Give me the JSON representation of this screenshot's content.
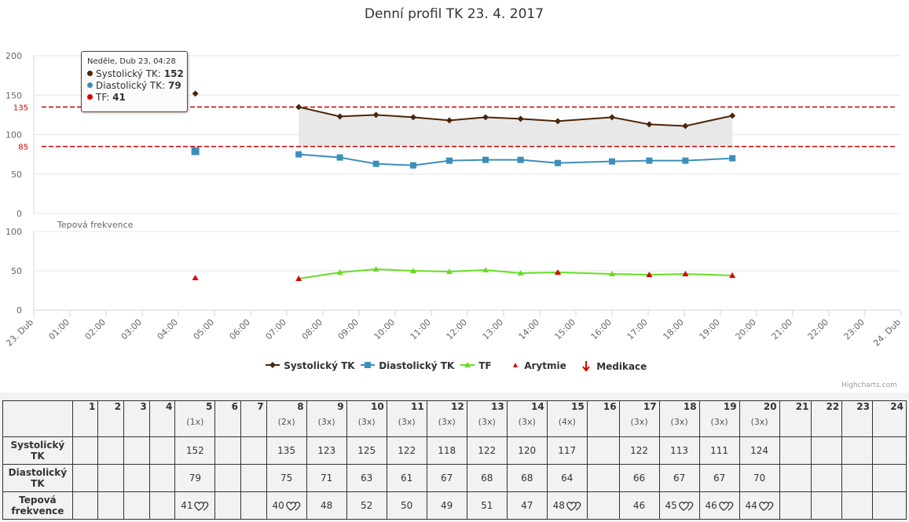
{
  "chart_data": {
    "type": "line",
    "title": "Denní profil TK 23. 4. 2017",
    "x_tick_labels": [
      "23. Dub",
      "01:00",
      "02:00",
      "03:00",
      "04:00",
      "05:00",
      "06:00",
      "07:00",
      "08:00",
      "09:00",
      "10:00",
      "11:00",
      "12:00",
      "13:00",
      "14:00",
      "15:00",
      "16:00",
      "17:00",
      "18:00",
      "19:00",
      "20:00",
      "21:00",
      "22:00",
      "23:00",
      "24. Dub"
    ],
    "pane_bp": {
      "ylim": [
        0,
        200
      ],
      "yticks": [
        "0",
        "50",
        "100",
        "150",
        "200"
      ],
      "plot_bands": [
        85,
        135
      ],
      "plot_line_labels": [
        "135",
        "85"
      ],
      "series": [
        {
          "name": "Systolický TK",
          "color": "#4b2508",
          "marker": "diamond",
          "isolated": [
            {
              "x": 4.47,
              "y": 152
            }
          ],
          "points": [
            {
              "x": 7.33,
              "y": 135
            },
            {
              "x": 8.47,
              "y": 123
            },
            {
              "x": 9.47,
              "y": 125
            },
            {
              "x": 10.5,
              "y": 122
            },
            {
              "x": 11.5,
              "y": 118
            },
            {
              "x": 12.5,
              "y": 122
            },
            {
              "x": 13.47,
              "y": 120
            },
            {
              "x": 14.5,
              "y": 117
            },
            {
              "x": 16.0,
              "y": 122
            },
            {
              "x": 17.03,
              "y": 113
            },
            {
              "x": 18.03,
              "y": 111
            },
            {
              "x": 19.33,
              "y": 124
            }
          ]
        },
        {
          "name": "Diastolický TK",
          "color": "#3d8fba",
          "marker": "square",
          "isolated": [
            {
              "x": 4.47,
              "y": 79
            }
          ],
          "points": [
            {
              "x": 7.33,
              "y": 75
            },
            {
              "x": 8.47,
              "y": 71
            },
            {
              "x": 9.47,
              "y": 63
            },
            {
              "x": 10.5,
              "y": 61
            },
            {
              "x": 11.5,
              "y": 67
            },
            {
              "x": 12.5,
              "y": 68
            },
            {
              "x": 13.47,
              "y": 68
            },
            {
              "x": 14.5,
              "y": 64
            },
            {
              "x": 16.0,
              "y": 66
            },
            {
              "x": 17.03,
              "y": 67
            },
            {
              "x": 18.03,
              "y": 67
            },
            {
              "x": 19.33,
              "y": 70
            }
          ]
        }
      ]
    },
    "pane_hr": {
      "title": "Tepová frekvence",
      "ylim": [
        0,
        100
      ],
      "yticks": [
        "0",
        "50",
        "100"
      ],
      "series": [
        {
          "name": "TF",
          "color": "#66dd22",
          "marker": "triangle",
          "isolated": [
            {
              "x": 4.47,
              "y": 41
            }
          ],
          "points": [
            {
              "x": 7.33,
              "y": 40
            },
            {
              "x": 8.47,
              "y": 48
            },
            {
              "x": 9.47,
              "y": 52
            },
            {
              "x": 10.5,
              "y": 50
            },
            {
              "x": 11.5,
              "y": 49
            },
            {
              "x": 12.5,
              "y": 51
            },
            {
              "x": 13.47,
              "y": 47
            },
            {
              "x": 14.5,
              "y": 48
            },
            {
              "x": 16.0,
              "y": 46
            },
            {
              "x": 17.03,
              "y": 45
            },
            {
              "x": 18.03,
              "y": 46
            },
            {
              "x": 19.33,
              "y": 44
            }
          ]
        },
        {
          "name": "Arytmie",
          "color": "#dd0000",
          "marker": "triangle",
          "points": [
            {
              "x": 4.47,
              "y": 41
            },
            {
              "x": 7.33,
              "y": 40
            },
            {
              "x": 14.5,
              "y": 48
            },
            {
              "x": 17.03,
              "y": 45
            },
            {
              "x": 18.03,
              "y": 46
            },
            {
              "x": 19.33,
              "y": 44
            }
          ]
        }
      ]
    }
  },
  "tooltip": {
    "header": "Neděle, Dub 23, 04:28",
    "sys_label": "Systolický TK: ",
    "sys_value": "152",
    "dia_label": "Diastolický TK: ",
    "dia_value": "79",
    "hr_label": "TF: ",
    "hr_value": "41",
    "color_sys": "#4b2508",
    "color_dia": "#3d8fba",
    "color_hr": "#dd0000"
  },
  "legend": {
    "sys": "Systolický TK",
    "dia": "Diastolický TK",
    "tf": "TF",
    "arytmie": "Arytmie",
    "medikace": "Medikace"
  },
  "credits": "Highcharts.com",
  "table": {
    "hours": [
      "1",
      "2",
      "3",
      "4",
      "5",
      "6",
      "7",
      "8",
      "9",
      "10",
      "11",
      "12",
      "13",
      "14",
      "15",
      "16",
      "17",
      "18",
      "19",
      "20",
      "21",
      "22",
      "23",
      "24"
    ],
    "counts": [
      "",
      "",
      "",
      "",
      "(1x)",
      "",
      "",
      "(2x)",
      "(3x)",
      "(3x)",
      "(3x)",
      "(3x)",
      "(3x)",
      "(3x)",
      "(4x)",
      "",
      "(3x)",
      "(3x)",
      "(3x)",
      "(3x)",
      "",
      "",
      "",
      ""
    ],
    "row_sys_label": "Systolický TK",
    "row_dia_label": "Diastolický TK",
    "row_hr_label": "Tepová frekvence",
    "sys": [
      "",
      "",
      "",
      "",
      "152",
      "",
      "",
      "135",
      "123",
      "125",
      "122",
      "118",
      "122",
      "120",
      "117",
      "",
      "122",
      "113",
      "111",
      "124",
      "",
      "",
      "",
      ""
    ],
    "dia": [
      "",
      "",
      "",
      "",
      "79",
      "",
      "",
      "75",
      "71",
      "63",
      "61",
      "67",
      "68",
      "68",
      "64",
      "",
      "66",
      "67",
      "67",
      "70",
      "",
      "",
      "",
      ""
    ],
    "hr": [
      "",
      "",
      "",
      "",
      "41",
      "",
      "",
      "40",
      "48",
      "52",
      "50",
      "49",
      "51",
      "47",
      "48",
      "",
      "46",
      "45",
      "46",
      "44",
      "",
      "",
      "",
      ""
    ],
    "hr_arrhythmia": [
      false,
      false,
      false,
      false,
      true,
      false,
      false,
      true,
      false,
      false,
      false,
      false,
      false,
      false,
      true,
      false,
      false,
      true,
      true,
      true,
      false,
      false,
      false,
      false
    ]
  }
}
